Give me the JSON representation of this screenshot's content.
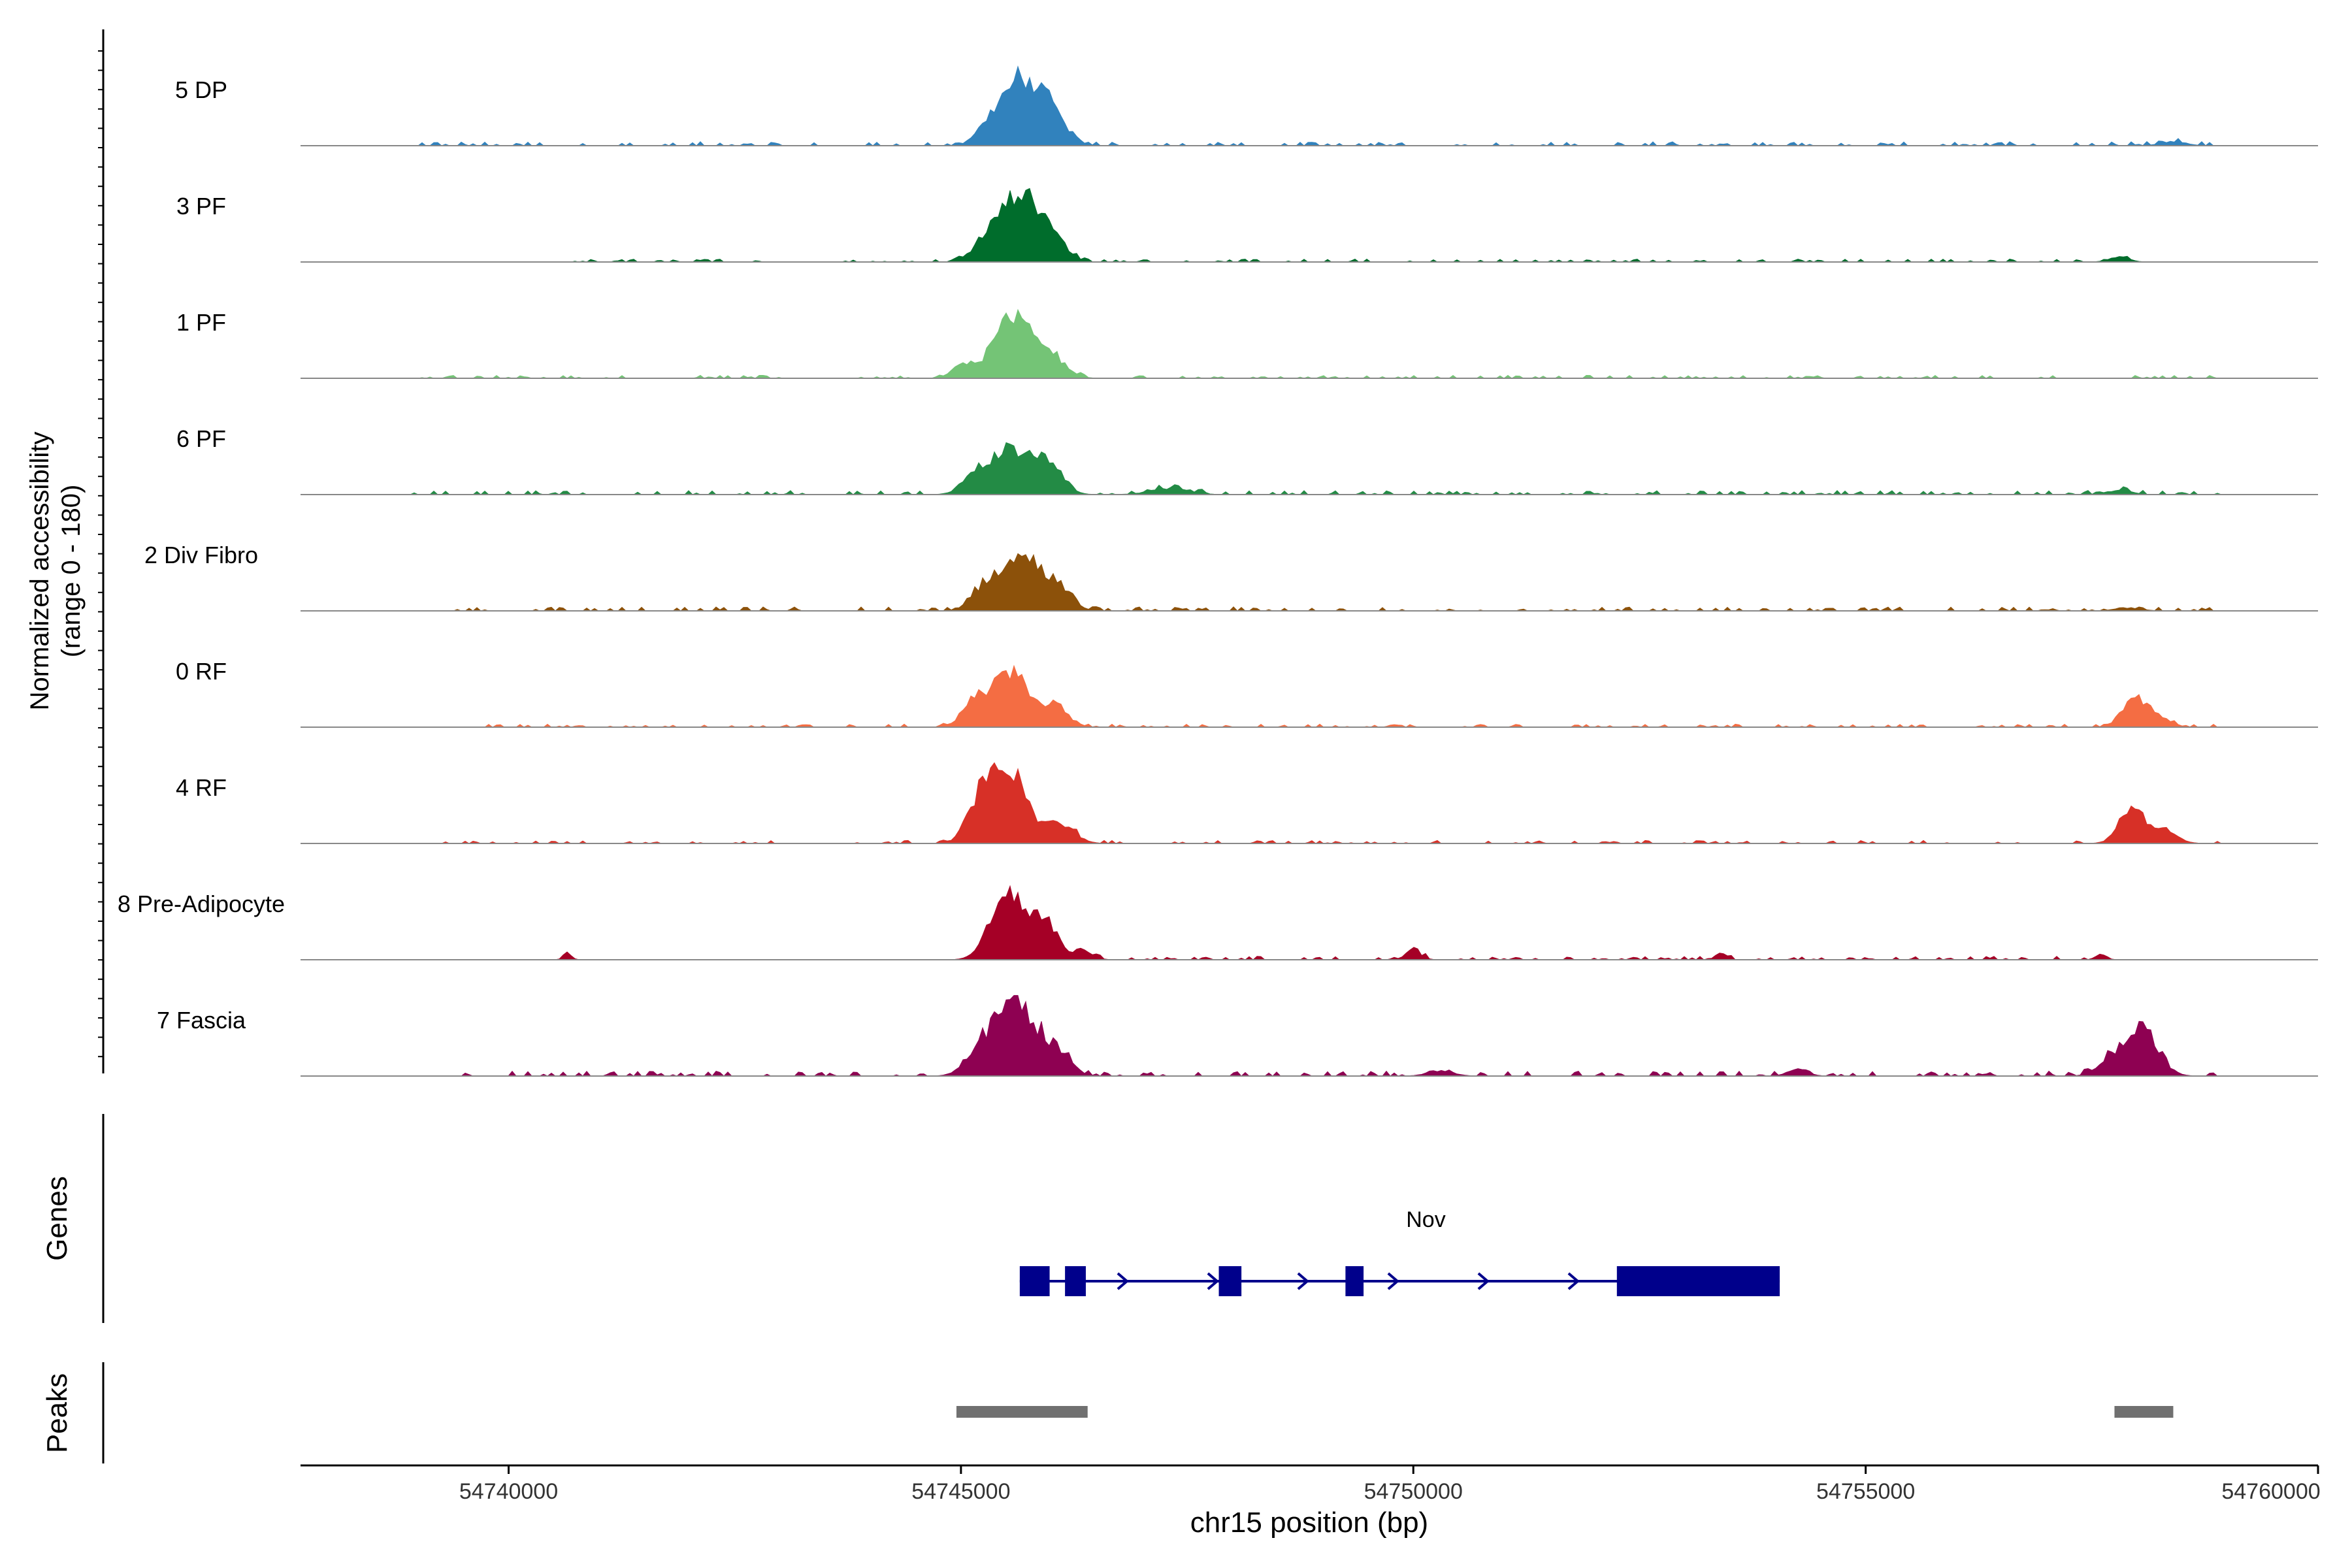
{
  "chart_data": {
    "type": "area",
    "title": "",
    "ylabel_line1": "Normalized accessibility",
    "ylabel_line2": "(range 0 - 180)",
    "xlabel": "chr15 position (bp)",
    "xlim": [
      54737700,
      54760000
    ],
    "y_range": [
      0,
      180
    ],
    "x_ticks": [
      {
        "value": 54740000,
        "label": "54740000"
      },
      {
        "value": 54745000,
        "label": "54745000"
      },
      {
        "value": 54750000,
        "label": "54750000"
      },
      {
        "value": 54755000,
        "label": "54755000"
      },
      {
        "value": 54760000,
        "label": "54760000"
      }
    ],
    "series": [
      {
        "name": "5 DP",
        "color": "#3182bd",
        "peaks": [
          [
            54745700,
            0.85,
            300
          ],
          [
            54745350,
            0.25,
            220
          ],
          [
            54746050,
            0.25,
            220
          ],
          [
            54758400,
            0.05,
            200
          ]
        ],
        "noise_start": 54738900,
        "noise_end": 54758900,
        "noise_level": 0.04
      },
      {
        "name": "3 PF",
        "color": "#006d2c",
        "peaks": [
          [
            54745650,
            0.85,
            280
          ],
          [
            54745300,
            0.3,
            220
          ],
          [
            54746000,
            0.3,
            220
          ],
          [
            54757800,
            0.07,
            150
          ]
        ],
        "noise_start": 54740300,
        "noise_end": 54757900,
        "noise_level": 0.03
      },
      {
        "name": "1 PF",
        "color": "#74c476",
        "peaks": [
          [
            54745550,
            0.75,
            300
          ],
          [
            54745000,
            0.15,
            150
          ],
          [
            54745950,
            0.3,
            250
          ]
        ],
        "noise_start": 54738900,
        "noise_end": 54758900,
        "noise_level": 0.03
      },
      {
        "name": "6 PF",
        "color": "#238b45",
        "peaks": [
          [
            54745500,
            0.55,
            250
          ],
          [
            54745900,
            0.45,
            250
          ],
          [
            54745150,
            0.25,
            200
          ],
          [
            54747300,
            0.08,
            300
          ],
          [
            54757800,
            0.05,
            200
          ]
        ],
        "noise_start": 54738900,
        "noise_end": 54758900,
        "noise_level": 0.04
      },
      {
        "name": "2 Div Fibro",
        "color": "#8c510a",
        "peaks": [
          [
            54745700,
            0.7,
            280
          ],
          [
            54745300,
            0.35,
            220
          ],
          [
            54746100,
            0.25,
            200
          ],
          [
            54757900,
            0.04,
            200
          ]
        ],
        "noise_start": 54739400,
        "noise_end": 54758900,
        "noise_level": 0.04
      },
      {
        "name": "0 RF",
        "color": "#f46d43",
        "peaks": [
          [
            54745550,
            0.75,
            280
          ],
          [
            54745150,
            0.3,
            200
          ],
          [
            54746050,
            0.25,
            200
          ],
          [
            54757950,
            0.35,
            180
          ],
          [
            54758200,
            0.15,
            200
          ]
        ],
        "noise_start": 54739400,
        "noise_end": 54758900,
        "noise_level": 0.03
      },
      {
        "name": "4 RF",
        "color": "#d73027",
        "peaks": [
          [
            54745500,
            1.0,
            300
          ],
          [
            54745200,
            0.35,
            200
          ],
          [
            54746100,
            0.25,
            220
          ],
          [
            54757950,
            0.45,
            200
          ],
          [
            54758300,
            0.15,
            200
          ]
        ],
        "noise_start": 54738900,
        "noise_end": 54758900,
        "noise_level": 0.03
      },
      {
        "name": "8 Pre-Adipocyte",
        "color": "#a50026",
        "peaks": [
          [
            54745500,
            0.85,
            250
          ],
          [
            54745900,
            0.5,
            220
          ],
          [
            54746350,
            0.12,
            150
          ],
          [
            54740650,
            0.1,
            60
          ],
          [
            54750000,
            0.12,
            120
          ],
          [
            54753400,
            0.1,
            80
          ],
          [
            54757600,
            0.08,
            80
          ]
        ],
        "noise_start": 54745000,
        "noise_end": 54757800,
        "noise_level": 0.035
      },
      {
        "name": "7 Fascia",
        "color": "#8e0152",
        "peaks": [
          [
            54745600,
            1.0,
            300
          ],
          [
            54745200,
            0.3,
            220
          ],
          [
            54746050,
            0.3,
            220
          ],
          [
            54758050,
            0.6,
            250
          ],
          [
            54757700,
            0.2,
            200
          ],
          [
            54754250,
            0.1,
            150
          ],
          [
            54750300,
            0.07,
            200
          ]
        ],
        "noise_start": 54739500,
        "noise_end": 54758900,
        "noise_level": 0.05
      }
    ],
    "genes_label": "Genes",
    "gene": {
      "name": "Nov",
      "strand": "+",
      "color": "#00008b",
      "start": 54745650,
      "end": 54754050,
      "exons": [
        [
          54745650,
          54745980
        ],
        [
          54746150,
          54746380
        ],
        [
          54747850,
          54748100
        ],
        [
          54749250,
          54749450
        ],
        [
          54752250,
          54754050
        ]
      ]
    },
    "peaks_label": "Peaks",
    "peak_regions": [
      [
        54744950,
        54746400
      ],
      [
        54757750,
        54758400
      ]
    ],
    "peak_color": "#707070"
  }
}
